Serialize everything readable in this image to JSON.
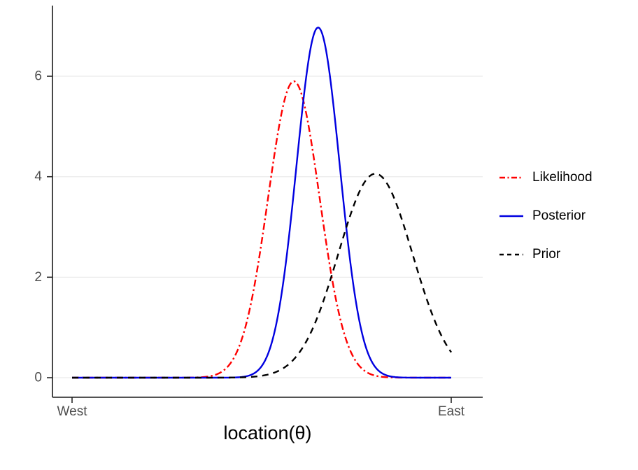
{
  "chart_data": {
    "type": "line",
    "title": "",
    "xlabel": "location(θ)",
    "ylabel": "",
    "x_axis": {
      "tick_labels": [
        "West",
        "East"
      ],
      "tick_positions": [
        0,
        1
      ],
      "range": [
        0,
        1
      ]
    },
    "y_axis": {
      "ticks": [
        0,
        2,
        4,
        6
      ],
      "range": [
        0,
        7.2
      ]
    },
    "grid": "horizontal-major",
    "legend_position": "right",
    "series": [
      {
        "name": "Likelihood",
        "color": "#FF0000",
        "linetype": "dotdash",
        "dash": "10 4 2.5 4",
        "key_dash": "8 3.5 2 3.5",
        "shape": "gaussian",
        "mean": 0.585,
        "sd": 0.068,
        "peak": 5.9
      },
      {
        "name": "Posterior",
        "color": "#0000E0",
        "linetype": "solid",
        "dash": "",
        "key_dash": "",
        "shape": "gaussian",
        "mean": 0.649,
        "sd": 0.057,
        "peak": 6.97
      },
      {
        "name": "Prior",
        "color": "#000000",
        "linetype": "dashed",
        "dash": "9 7",
        "key_dash": "6 5",
        "shape": "gaussian",
        "mean": 0.8,
        "sd": 0.098,
        "peak": 4.06
      }
    ]
  },
  "colors": {
    "grid": "#EBEBEB",
    "axis": "#1A1A1A",
    "tick_label": "#4D4D4D",
    "background": "#FFFFFF"
  }
}
